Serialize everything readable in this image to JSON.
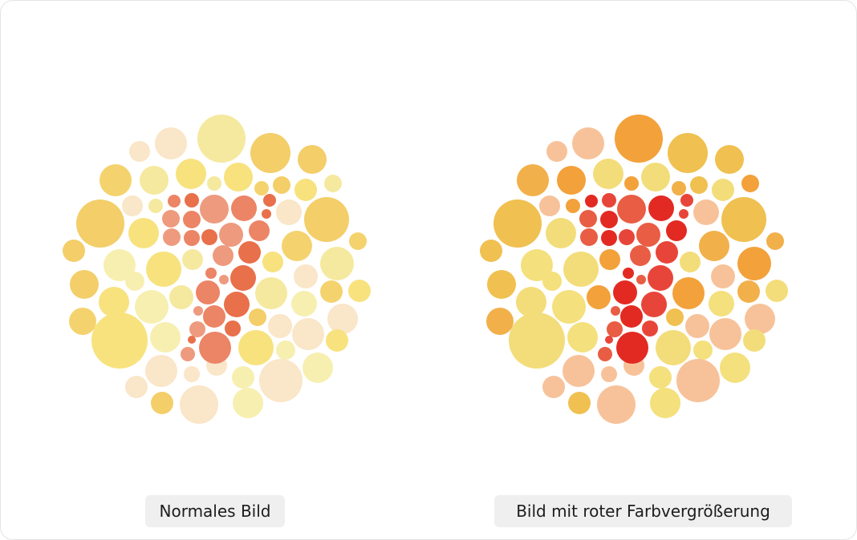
{
  "panels": [
    {
      "caption": "Normales Bild",
      "figure_digit": "7"
    },
    {
      "caption": "Bild mit roter Farbvergrößerung",
      "figure_digit": "7"
    }
  ],
  "palettes": {
    "normal": {
      "figure": [
        "#ec8466",
        "#e8704a",
        "#ee9a7e"
      ],
      "background": [
        "#f5e99f",
        "#f4d36e",
        "#f7e27e",
        "#fae6c8",
        "#f3ce69",
        "#f7efb0"
      ]
    },
    "enhanced": {
      "figure": [
        "#e32a22",
        "#e8453a",
        "#e85d44"
      ],
      "background": [
        "#f3a13b",
        "#f2b04a",
        "#f3dd7a",
        "#f7c29a",
        "#f0c050",
        "#f4e07c"
      ]
    }
  }
}
